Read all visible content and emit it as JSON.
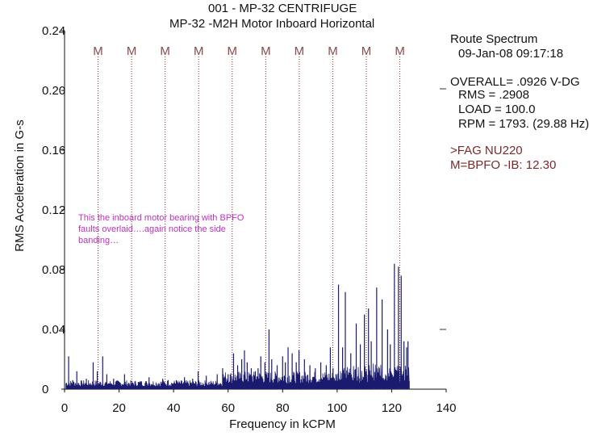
{
  "chart_data": {
    "type": "line",
    "title": "001  - MP-32 CENTRIFUGE",
    "subtitle": "MP-32     -M2H   Motor Inboard Horizontal",
    "xlabel": "Frequency in kCPM",
    "ylabel": "RMS Acceleration in G-s",
    "xlim": [
      0,
      140
    ],
    "ylim": [
      0,
      0.24
    ],
    "x_ticks": [
      0,
      20,
      40,
      60,
      80,
      100,
      120,
      140
    ],
    "y_ticks": [
      0,
      0.04,
      0.08,
      0.12,
      0.16,
      0.2,
      0.24
    ],
    "x_tick_labels": [
      "0",
      "20",
      "40",
      "60",
      "80",
      "100",
      "120",
      "140"
    ],
    "y_tick_labels": [
      "0",
      "0.04",
      "0.08",
      "0.12",
      "0.16",
      "0.20",
      "0.24"
    ],
    "fault_marker_label": "M",
    "fault_markers_kcpm": [
      12.3,
      24.6,
      36.9,
      49.2,
      61.5,
      73.8,
      86.1,
      98.4,
      110.7,
      123.0
    ],
    "series": [
      {
        "name": "Route Spectrum",
        "color": "#1a1a6e",
        "peaks": [
          [
            1.5,
            0.022
          ],
          [
            3.0,
            0.006
          ],
          [
            4.5,
            0.012
          ],
          [
            8.0,
            0.007
          ],
          [
            10.5,
            0.018
          ],
          [
            12.0,
            0.012
          ],
          [
            14.0,
            0.022
          ],
          [
            15.5,
            0.01
          ],
          [
            18.0,
            0.007
          ],
          [
            22.0,
            0.01
          ],
          [
            28.0,
            0.005
          ],
          [
            31.0,
            0.008
          ],
          [
            36.0,
            0.007
          ],
          [
            38.0,
            0.006
          ],
          [
            41.0,
            0.006
          ],
          [
            44.0,
            0.008
          ],
          [
            47.0,
            0.007
          ],
          [
            49.0,
            0.012
          ],
          [
            52.0,
            0.009
          ],
          [
            56.0,
            0.01
          ],
          [
            58.0,
            0.014
          ],
          [
            60.0,
            0.01
          ],
          [
            62.0,
            0.024
          ],
          [
            63.5,
            0.016
          ],
          [
            65.0,
            0.02
          ],
          [
            66.0,
            0.026
          ],
          [
            67.0,
            0.018
          ],
          [
            68.5,
            0.014
          ],
          [
            70.0,
            0.012
          ],
          [
            71.0,
            0.014
          ],
          [
            72.0,
            0.022
          ],
          [
            73.5,
            0.018
          ],
          [
            75.0,
            0.04
          ],
          [
            76.0,
            0.02
          ],
          [
            78.0,
            0.016
          ],
          [
            80.0,
            0.022
          ],
          [
            81.0,
            0.018
          ],
          [
            82.0,
            0.028
          ],
          [
            83.5,
            0.024
          ],
          [
            85.0,
            0.018
          ],
          [
            86.0,
            0.026
          ],
          [
            88.0,
            0.02
          ],
          [
            90.0,
            0.016
          ],
          [
            92.0,
            0.014
          ],
          [
            94.0,
            0.018
          ],
          [
            96.0,
            0.016
          ],
          [
            97.5,
            0.028
          ],
          [
            98.5,
            0.014
          ],
          [
            100.5,
            0.07
          ],
          [
            102.0,
            0.028
          ],
          [
            103.0,
            0.065
          ],
          [
            105.0,
            0.024
          ],
          [
            107.0,
            0.044
          ],
          [
            108.5,
            0.03
          ],
          [
            110.0,
            0.05
          ],
          [
            111.5,
            0.054
          ],
          [
            112.5,
            0.032
          ],
          [
            114.5,
            0.068
          ],
          [
            116.5,
            0.06
          ],
          [
            118.5,
            0.04
          ],
          [
            119.5,
            0.03
          ],
          [
            121.0,
            0.084
          ],
          [
            122.5,
            0.082
          ],
          [
            123.5,
            0.076
          ],
          [
            124.5,
            0.032
          ],
          [
            125.5,
            0.028
          ],
          [
            126.0,
            0.032
          ]
        ]
      }
    ]
  },
  "info": {
    "line1": "Route Spectrum",
    "line2": "09-Jan-08  09:17:18",
    "line3": "OVERALL= .0926 V-DG",
    "line4": "RMS =  .2908",
    "line5": "LOAD = 100.0",
    "line6": "RPM = 1793. (29.88 Hz)"
  },
  "fault": {
    "line1": ">FAG NU220",
    "line2": "M=BPFO -IB: 12.30"
  },
  "annotation": "This the inboard motor bearing with BPFO faults overlaid….again notice the side banding…"
}
